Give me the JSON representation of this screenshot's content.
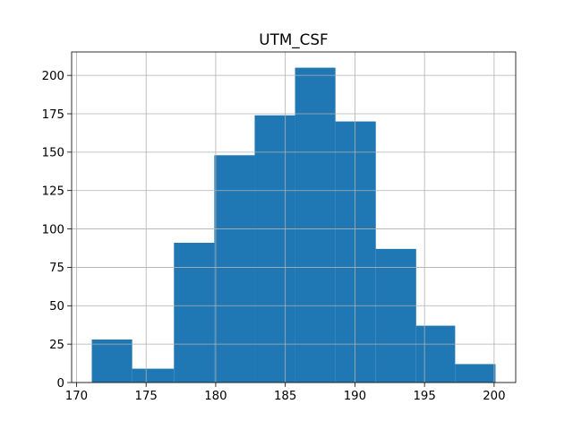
{
  "chart_data": {
    "type": "bar",
    "title": "UTM_CSF",
    "xlabel": "",
    "ylabel": "",
    "bins": [
      {
        "x0": 171.1,
        "x1": 174.0,
        "count": 28
      },
      {
        "x0": 174.0,
        "x1": 177.0,
        "count": 9
      },
      {
        "x0": 177.0,
        "x1": 179.9,
        "count": 91
      },
      {
        "x0": 179.9,
        "x1": 182.8,
        "count": 148
      },
      {
        "x0": 182.8,
        "x1": 185.7,
        "count": 174
      },
      {
        "x0": 185.7,
        "x1": 188.6,
        "count": 205
      },
      {
        "x0": 188.6,
        "x1": 191.5,
        "count": 170
      },
      {
        "x0": 191.5,
        "x1": 194.4,
        "count": 87
      },
      {
        "x0": 194.4,
        "x1": 197.2,
        "count": 37
      },
      {
        "x0": 197.2,
        "x1": 200.1,
        "count": 12
      }
    ],
    "xlim": [
      169.65,
      201.55
    ],
    "ylim": [
      0,
      215.25
    ],
    "xticks": [
      170,
      175,
      180,
      185,
      190,
      195,
      200
    ],
    "yticks": [
      0,
      25,
      50,
      75,
      100,
      125,
      150,
      175,
      200
    ],
    "grid": true,
    "bar_color": "#1f77b4",
    "grid_color": "#b0b0b0"
  }
}
